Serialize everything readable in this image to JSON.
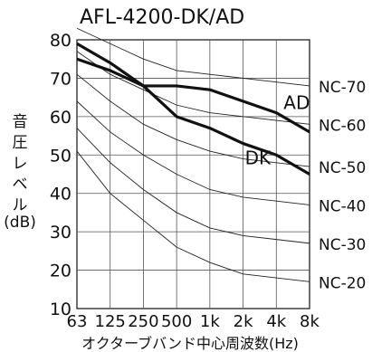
{
  "chart_data": {
    "type": "line",
    "title": "AFL-4200-DK/AD",
    "ylabel_chars": [
      "音",
      "圧",
      "レ",
      "ベ",
      "ル"
    ],
    "yunit": "(dB)",
    "xlabel": "オクターブバンド中心周波数(Hz)",
    "x": [
      "63",
      "125",
      "250",
      "500",
      "1k",
      "2k",
      "4k",
      "8k"
    ],
    "ylim": [
      10,
      80
    ],
    "yticks": [
      10,
      20,
      30,
      40,
      50,
      60,
      70,
      80
    ],
    "grid": true,
    "series": [
      {
        "name": "AD",
        "values": [
          79,
          74,
          68,
          68,
          67,
          64,
          61,
          56
        ],
        "bold": true
      },
      {
        "name": "DK",
        "values": [
          75,
          72,
          68,
          60,
          57,
          53,
          50,
          45
        ],
        "bold": true
      }
    ],
    "nc_curves": [
      {
        "name": "NC-70",
        "values": [
          83,
          79,
          75,
          72,
          71,
          70,
          69,
          68
        ]
      },
      {
        "name": "NC-60",
        "values": [
          77,
          71,
          67,
          63,
          61,
          60,
          59,
          58
        ]
      },
      {
        "name": "NC-50",
        "values": [
          71,
          64,
          58,
          54,
          51,
          49,
          48,
          47
        ]
      },
      {
        "name": "NC-40",
        "values": [
          64,
          56,
          50,
          45,
          41,
          39,
          38,
          37
        ]
      },
      {
        "name": "NC-30",
        "values": [
          57,
          48,
          41,
          35,
          31,
          29,
          28,
          27
        ]
      },
      {
        "name": "NC-20",
        "values": [
          51,
          40,
          33,
          26,
          22,
          19,
          18,
          17
        ]
      }
    ]
  }
}
